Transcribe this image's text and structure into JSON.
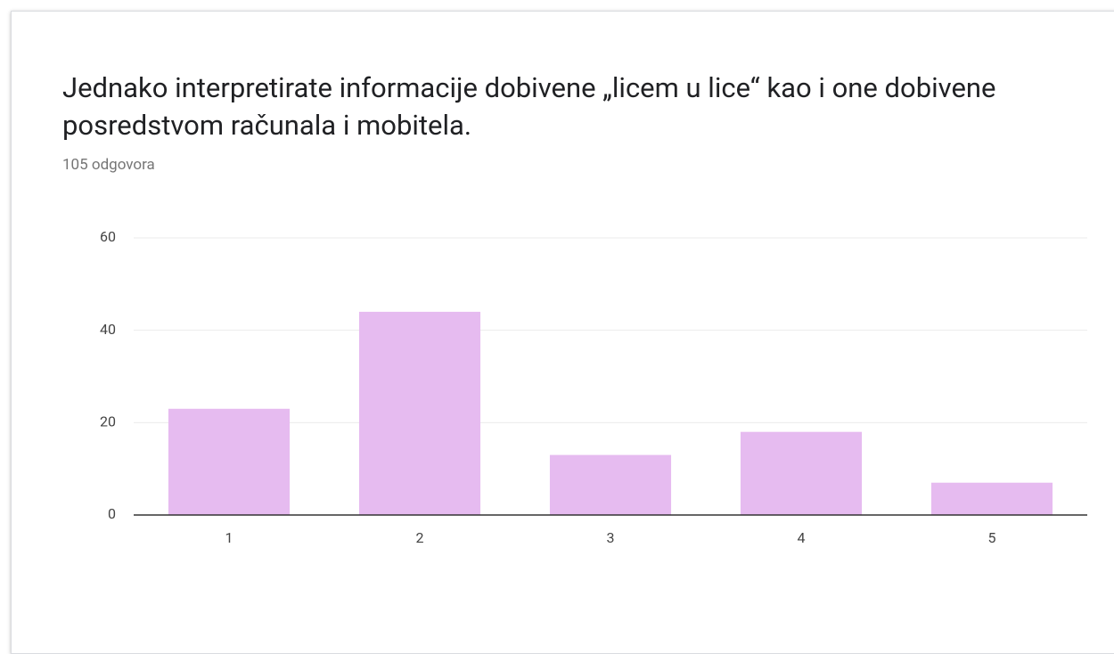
{
  "chart_data": {
    "type": "bar",
    "title": "Jednako interpretirate informacije dobivene „licem u lice“ kao i one dobivene posredstvom računala i mobitela.",
    "subtitle": "105 odgovora",
    "categories": [
      "1",
      "2",
      "3",
      "4",
      "5"
    ],
    "values": [
      23,
      44,
      13,
      18,
      7
    ],
    "color": "#e6bbf0",
    "ylim": [
      0,
      60
    ],
    "yticks": [
      0,
      20,
      40,
      60
    ],
    "grid": true
  }
}
